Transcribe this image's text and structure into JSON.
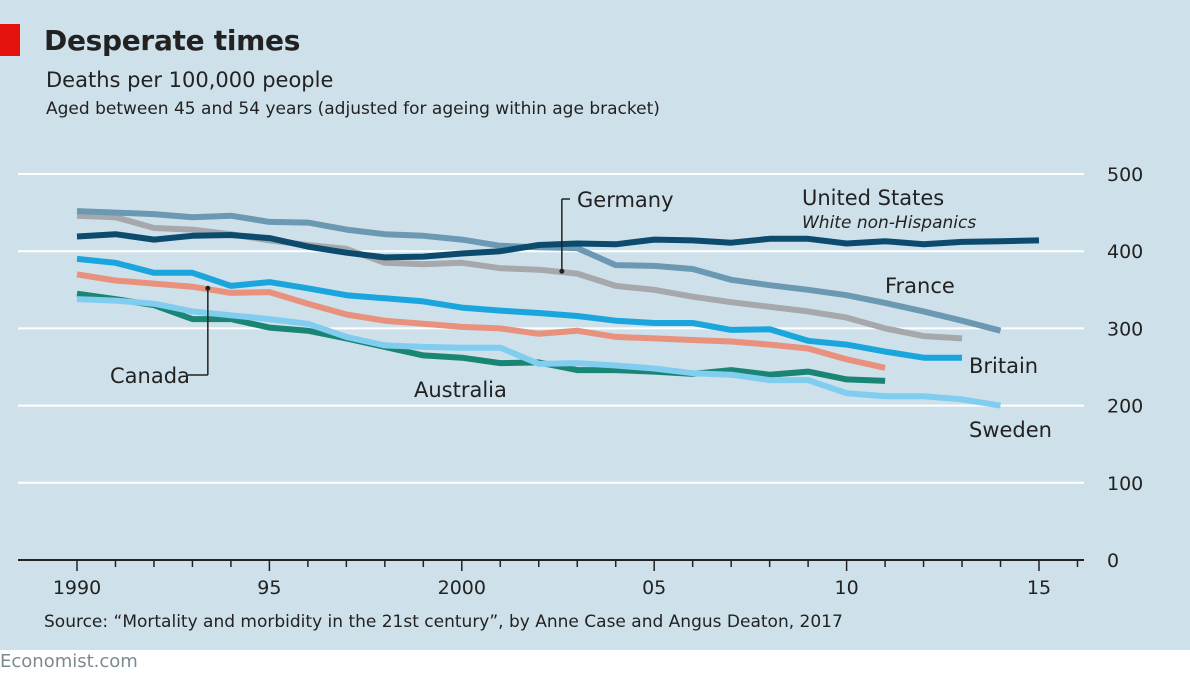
{
  "header": {
    "title": "Desperate times",
    "subtitle": "Deaths per 100,000 people",
    "subtitle2": "Aged between 45 and 54 years (adjusted for ageing within age bracket)"
  },
  "footer": {
    "source": "Source: “Mortality and morbidity in the 21st century”, by Anne Case and Angus Deaton, 2017",
    "brand": "Economist.com"
  },
  "colors": {
    "background": "#cee0ea",
    "accent": "#e3120b"
  },
  "chart_data": {
    "type": "line",
    "xlim": [
      1990,
      2017
    ],
    "ylim": [
      0,
      500
    ],
    "x_ticks": [
      {
        "value": 1990,
        "label": "1990"
      },
      {
        "value": 1995,
        "label": "95"
      },
      {
        "value": 2000,
        "label": "2000"
      },
      {
        "value": 2005,
        "label": "05"
      },
      {
        "value": 2010,
        "label": "10"
      },
      {
        "value": 2015,
        "label": "15"
      }
    ],
    "y_ticks": [
      {
        "value": 0,
        "label": "0"
      },
      {
        "value": 100,
        "label": "100"
      },
      {
        "value": 200,
        "label": "200"
      },
      {
        "value": 300,
        "label": "300"
      },
      {
        "value": 400,
        "label": "400"
      },
      {
        "value": 500,
        "label": "500"
      }
    ],
    "grid": true,
    "series": [
      {
        "name": "Germany",
        "color": "#a6a8ac",
        "x": [
          1990,
          1991,
          1992,
          1993,
          1994,
          1995,
          1996,
          1997,
          1998,
          1999,
          2000,
          2001,
          2002,
          2003,
          2004,
          2005,
          2006,
          2007,
          2008,
          2009,
          2010,
          2011,
          2012,
          2013
        ],
        "y": [
          446,
          444,
          430,
          428,
          422,
          414,
          408,
          403,
          385,
          383,
          385,
          378,
          376,
          371,
          355,
          350,
          341,
          334,
          328,
          322,
          314,
          300,
          290,
          287
        ]
      },
      {
        "name": "France",
        "color": "#6b98b3",
        "x": [
          1990,
          1991,
          1992,
          1993,
          1994,
          1995,
          1996,
          1997,
          1998,
          1999,
          2000,
          2001,
          2002,
          2003,
          2004,
          2005,
          2006,
          2007,
          2008,
          2009,
          2010,
          2011,
          2012,
          2013,
          2014
        ],
        "y": [
          452,
          450,
          448,
          444,
          446,
          438,
          437,
          428,
          422,
          420,
          415,
          407,
          405,
          404,
          382,
          381,
          377,
          363,
          356,
          350,
          343,
          333,
          322,
          310,
          297
        ]
      },
      {
        "name": "United States",
        "note": "White non-Hispanics",
        "color": "#0c4b6e",
        "x": [
          1990,
          1991,
          1992,
          1993,
          1994,
          1995,
          1996,
          1997,
          1998,
          1999,
          2000,
          2001,
          2002,
          2003,
          2004,
          2005,
          2006,
          2007,
          2008,
          2009,
          2010,
          2011,
          2012,
          2013,
          2014,
          2015
        ],
        "y": [
          419,
          422,
          415,
          420,
          421,
          417,
          406,
          398,
          392,
          393,
          397,
          400,
          408,
          410,
          409,
          415,
          414,
          411,
          416,
          416,
          410,
          413,
          409,
          412,
          413,
          414
        ]
      },
      {
        "name": "Canada",
        "color": "#e8917c",
        "x": [
          1990,
          1991,
          1992,
          1993,
          1994,
          1995,
          1996,
          1997,
          1998,
          1999,
          2000,
          2001,
          2002,
          2003,
          2004,
          2005,
          2006,
          2007,
          2008,
          2009,
          2010,
          2011
        ],
        "y": [
          370,
          362,
          358,
          354,
          346,
          347,
          332,
          318,
          310,
          306,
          302,
          300,
          293,
          297,
          289,
          287,
          285,
          283,
          279,
          274,
          260,
          249
        ]
      },
      {
        "name": "Britain",
        "color": "#1aa6dd",
        "x": [
          1990,
          1991,
          1992,
          1993,
          1994,
          1995,
          1996,
          1997,
          1998,
          1999,
          2000,
          2001,
          2002,
          2003,
          2004,
          2005,
          2006,
          2007,
          2008,
          2009,
          2010,
          2011,
          2012,
          2013
        ],
        "y": [
          390,
          385,
          372,
          372,
          355,
          360,
          352,
          343,
          339,
          335,
          327,
          323,
          320,
          316,
          310,
          307,
          307,
          298,
          299,
          284,
          279,
          270,
          262,
          262
        ]
      },
      {
        "name": "Australia",
        "color": "#1a8575",
        "x": [
          1990,
          1991,
          1992,
          1993,
          1994,
          1995,
          1996,
          1997,
          1998,
          1999,
          2000,
          2001,
          2002,
          2003,
          2004,
          2005,
          2006,
          2007,
          2008,
          2009,
          2010,
          2011
        ],
        "y": [
          345,
          338,
          330,
          312,
          312,
          301,
          297,
          287,
          276,
          265,
          262,
          255,
          256,
          246,
          246,
          244,
          241,
          246,
          240,
          244,
          234,
          232
        ]
      },
      {
        "name": "Sweden",
        "color": "#80cdf0",
        "x": [
          1990,
          1991,
          1992,
          1993,
          1994,
          1995,
          1996,
          1997,
          1998,
          1999,
          2000,
          2001,
          2002,
          2003,
          2004,
          2005,
          2006,
          2007,
          2008,
          2009,
          2010,
          2011,
          2012,
          2013,
          2014
        ],
        "y": [
          338,
          336,
          332,
          322,
          317,
          312,
          306,
          289,
          278,
          276,
          275,
          275,
          254,
          255,
          252,
          248,
          242,
          240,
          233,
          233,
          216,
          212,
          212,
          208,
          200
        ]
      }
    ]
  }
}
